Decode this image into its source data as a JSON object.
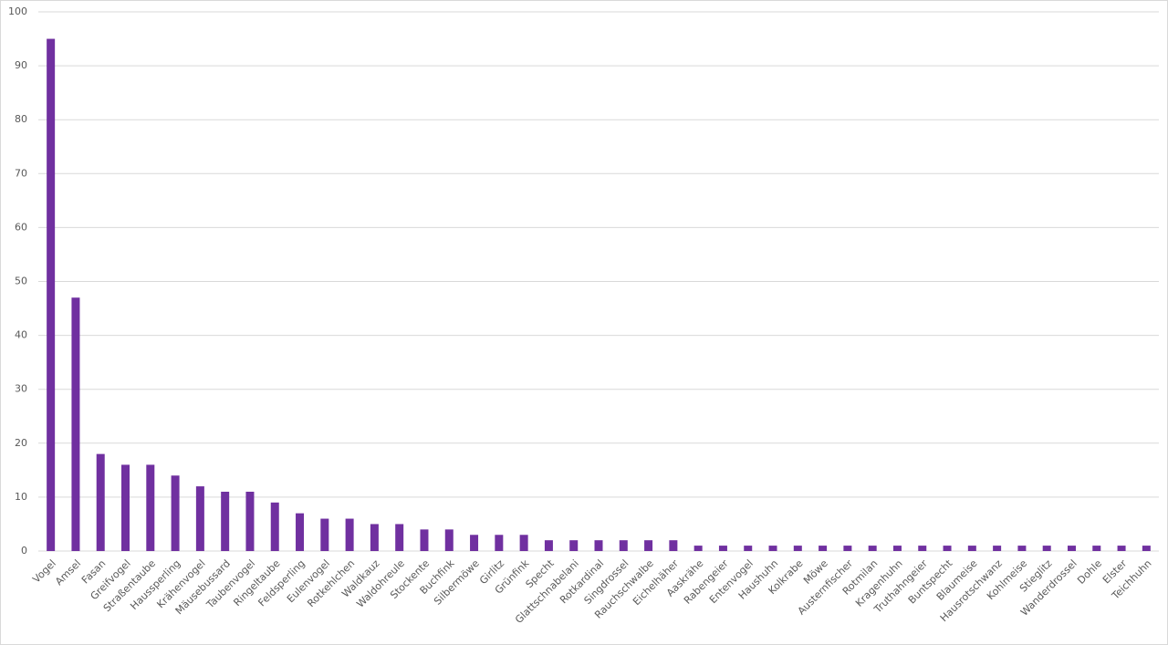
{
  "chart_data": {
    "type": "bar",
    "categories": [
      "Vogel",
      "Amsel",
      "Fasan",
      "Greifvogel",
      "Straßentaube",
      "Haussperling",
      "Krähenvogel",
      "Mäusebussard",
      "Taubenvogel",
      "Ringeltaube",
      "Feldsperling",
      "Eulenvogel",
      "Rotkehlchen",
      "Waldkauz",
      "Waldohreule",
      "Stockente",
      "Buchfink",
      "Silbermöwe",
      "Girlitz",
      "Grünfink",
      "Specht",
      "Glattschnabelani",
      "Rotkardinal",
      "Singdrossel",
      "Rauchschwalbe",
      "Eichelhäher",
      "Aaskrähe",
      "Rabengeier",
      "Entenvogel",
      "Haushuhn",
      "Kolkrabe",
      "Möwe",
      "Austernfischer",
      "Rotmilan",
      "Kragenhuhn",
      "Truthahngeier",
      "Buntspecht",
      "Blaumeise",
      "Hausrotschwanz",
      "Kohlmeise",
      "Stieglitz",
      "Wanderdrossel",
      "Dohle",
      "Elster",
      "Teichhuhn"
    ],
    "values": [
      95,
      47,
      18,
      16,
      16,
      14,
      12,
      11,
      11,
      9,
      7,
      6,
      6,
      5,
      5,
      4,
      4,
      3,
      3,
      3,
      2,
      2,
      2,
      2,
      2,
      2,
      1,
      1,
      1,
      1,
      1,
      1,
      1,
      1,
      1,
      1,
      1,
      1,
      1,
      1,
      1,
      1,
      1,
      1,
      1
    ],
    "color": "#7030a0",
    "ylim": [
      0,
      100
    ],
    "yticks": [
      0,
      10,
      20,
      30,
      40,
      50,
      60,
      70,
      80,
      90,
      100
    ],
    "grid": true
  }
}
